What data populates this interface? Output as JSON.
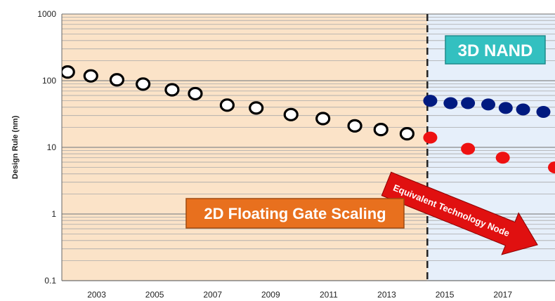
{
  "chart_data": {
    "type": "scatter",
    "ylabel": "Design Rule (nm)",
    "yscale": "log",
    "ylim": [
      0.1,
      1000
    ],
    "xlim": [
      2001.8,
      2018.8
    ],
    "x_ticks": [
      "2003",
      "2005",
      "2007",
      "2009",
      "2011",
      "2013",
      "2015",
      "2017"
    ],
    "y_ticks": [
      "0.1",
      "1",
      "10",
      "100",
      "1000"
    ],
    "divider_x": 2014.4,
    "regions": {
      "left": {
        "label": "2D Floating Gate Scaling",
        "fill": "#fbe3c8",
        "label_bg": "#e8701e",
        "label_color": "#ffffff"
      },
      "right": {
        "label": "3D NAND",
        "fill": "#e6effa",
        "label_bg": "#33c0c0",
        "label_color": "#ffffff"
      }
    },
    "annotation": {
      "text": "Equivalent Technology Node",
      "color": "#e01010",
      "text_color": "#ffffff"
    },
    "series": [
      {
        "marker": "hollow-circle",
        "color": "#000000",
        "points": [
          [
            2002.0,
            135
          ],
          [
            2002.8,
            118
          ],
          [
            2003.7,
            103
          ],
          [
            2004.6,
            89
          ],
          [
            2005.6,
            73
          ],
          [
            2006.4,
            64
          ],
          [
            2007.5,
            43
          ],
          [
            2008.5,
            39
          ],
          [
            2009.7,
            31
          ],
          [
            2010.8,
            27
          ],
          [
            2011.9,
            21
          ],
          [
            2012.8,
            18.5
          ],
          [
            2013.7,
            16
          ]
        ]
      },
      {
        "marker": "filled-circle",
        "color": "#001a80",
        "points": [
          [
            2014.5,
            50
          ],
          [
            2015.2,
            46
          ],
          [
            2015.8,
            46
          ],
          [
            2016.5,
            44
          ],
          [
            2017.1,
            39
          ],
          [
            2017.7,
            37
          ],
          [
            2018.4,
            34
          ]
        ]
      },
      {
        "marker": "filled-circle",
        "color": "#ee1111",
        "points": [
          [
            2014.5,
            14
          ],
          [
            2015.8,
            9.5
          ],
          [
            2017.0,
            7
          ],
          [
            2018.8,
            5
          ]
        ]
      }
    ]
  }
}
